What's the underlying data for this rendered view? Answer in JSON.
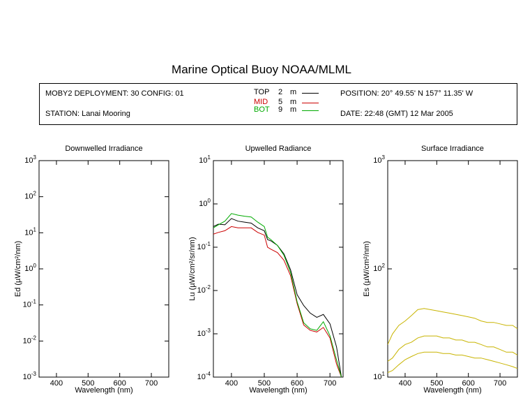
{
  "header": {
    "title": "Marine Optical Buoy NOAA/MLML",
    "deployment": "MOBY2 DEPLOYMENT: 30 CONFIG: 01",
    "station": "STATION: Lanai Mooring",
    "position": "POSITION: 20° 49.55' N   157° 11.35' W",
    "date": "DATE: 22:48 (GMT) 12 Mar 2005"
  },
  "legend": [
    {
      "name": "TOP",
      "depth": "2",
      "unit": "m",
      "color": "#000000"
    },
    {
      "name": "MID",
      "depth": "5",
      "unit": "m",
      "color": "#cc0000"
    },
    {
      "name": "BOT",
      "depth": "9",
      "unit": "m",
      "color": "#00aa00"
    }
  ],
  "chart_data": [
    {
      "type": "line",
      "title": "Downwelled Irradiance",
      "xlabel": "Wavelength (nm)",
      "ylabel": "Ed  (µW/cm²/nm)",
      "xlim": [
        345,
        755
      ],
      "xticks": [
        400,
        500,
        600,
        700
      ],
      "ylim": [
        0.001,
        1000
      ],
      "yscale": "log",
      "ytick_exponents": [
        -3,
        -2,
        -1,
        0,
        1,
        2,
        3
      ],
      "series": []
    },
    {
      "type": "line",
      "title": "Upwelled Radiance",
      "xlabel": "Wavelength (nm)",
      "ylabel": "Lu  (µW/cm²/sr/nm)",
      "xlim": [
        345,
        740
      ],
      "xticks": [
        400,
        500,
        600,
        700
      ],
      "ylim": [
        0.0001,
        10
      ],
      "yscale": "log",
      "ytick_exponents": [
        -4,
        -3,
        -2,
        -1,
        0,
        1
      ],
      "series": [
        {
          "name": "TOP",
          "color": "#000000",
          "x": [
            345,
            360,
            380,
            400,
            420,
            440,
            460,
            480,
            500,
            510,
            520,
            540,
            560,
            580,
            600,
            620,
            640,
            660,
            680,
            700,
            720,
            735
          ],
          "y": [
            0.3,
            0.34,
            0.33,
            0.46,
            0.4,
            0.38,
            0.36,
            0.28,
            0.24,
            0.15,
            0.14,
            0.11,
            0.07,
            0.03,
            0.008,
            0.0045,
            0.003,
            0.0024,
            0.0028,
            0.0017,
            0.0005,
            0.0001
          ]
        },
        {
          "name": "MID",
          "color": "#cc0000",
          "x": [
            345,
            360,
            380,
            400,
            420,
            440,
            460,
            480,
            500,
            510,
            520,
            540,
            560,
            580,
            600,
            620,
            640,
            660,
            680,
            700,
            720,
            735
          ],
          "y": [
            0.2,
            0.22,
            0.24,
            0.3,
            0.28,
            0.28,
            0.28,
            0.22,
            0.19,
            0.1,
            0.09,
            0.075,
            0.05,
            0.022,
            0.005,
            0.0016,
            0.0012,
            0.0011,
            0.0014,
            0.0008,
            0.0002,
            0.0001
          ]
        },
        {
          "name": "BOT",
          "color": "#00aa00",
          "x": [
            345,
            360,
            380,
            400,
            420,
            440,
            460,
            480,
            500,
            510,
            520,
            540,
            560,
            580,
            600,
            620,
            640,
            660,
            680,
            700,
            720,
            735
          ],
          "y": [
            0.28,
            0.33,
            0.4,
            0.6,
            0.55,
            0.52,
            0.5,
            0.38,
            0.3,
            0.17,
            0.15,
            0.11,
            0.065,
            0.026,
            0.0055,
            0.0018,
            0.0013,
            0.0012,
            0.0019,
            0.0009,
            0.00025,
            0.0001
          ]
        }
      ]
    },
    {
      "type": "line",
      "title": "Surface Irradiance",
      "xlabel": "Wavelength (nm)",
      "ylabel": "Es  (µW/cm²/nm)",
      "xlim": [
        345,
        755
      ],
      "xticks": [
        400,
        500,
        600,
        700
      ],
      "ylim": [
        10,
        1000
      ],
      "yscale": "log",
      "ytick_exponents": [
        1,
        2,
        3
      ],
      "series": [
        {
          "name": "",
          "color": "#c8b400",
          "x": [
            345,
            360,
            380,
            400,
            420,
            440,
            460,
            480,
            500,
            520,
            540,
            560,
            580,
            600,
            620,
            640,
            660,
            680,
            700,
            720,
            740,
            755
          ],
          "y": [
            20,
            25,
            30,
            33,
            37,
            42,
            43,
            42,
            41,
            40,
            39,
            38,
            37,
            36,
            35,
            33,
            32,
            32,
            31,
            30,
            30,
            28
          ]
        },
        {
          "name": "",
          "color": "#c8b400",
          "x": [
            345,
            360,
            380,
            400,
            420,
            440,
            460,
            480,
            500,
            520,
            540,
            560,
            580,
            600,
            620,
            640,
            660,
            680,
            700,
            720,
            740,
            755
          ],
          "y": [
            14,
            15,
            18,
            20,
            21,
            23,
            24,
            24,
            24,
            23,
            23,
            22,
            22,
            21,
            21,
            20,
            19,
            19,
            18,
            17,
            17,
            16
          ]
        },
        {
          "name": "",
          "color": "#c8b400",
          "x": [
            345,
            360,
            380,
            400,
            420,
            440,
            460,
            480,
            500,
            520,
            540,
            560,
            580,
            600,
            620,
            640,
            660,
            680,
            700,
            720,
            740,
            755
          ],
          "y": [
            11,
            11.5,
            13,
            14.5,
            15.5,
            16.5,
            17,
            17,
            17,
            16.5,
            16.5,
            16,
            16,
            15.5,
            15,
            15,
            14.5,
            14,
            13.5,
            13,
            12.5,
            12
          ]
        }
      ]
    }
  ]
}
